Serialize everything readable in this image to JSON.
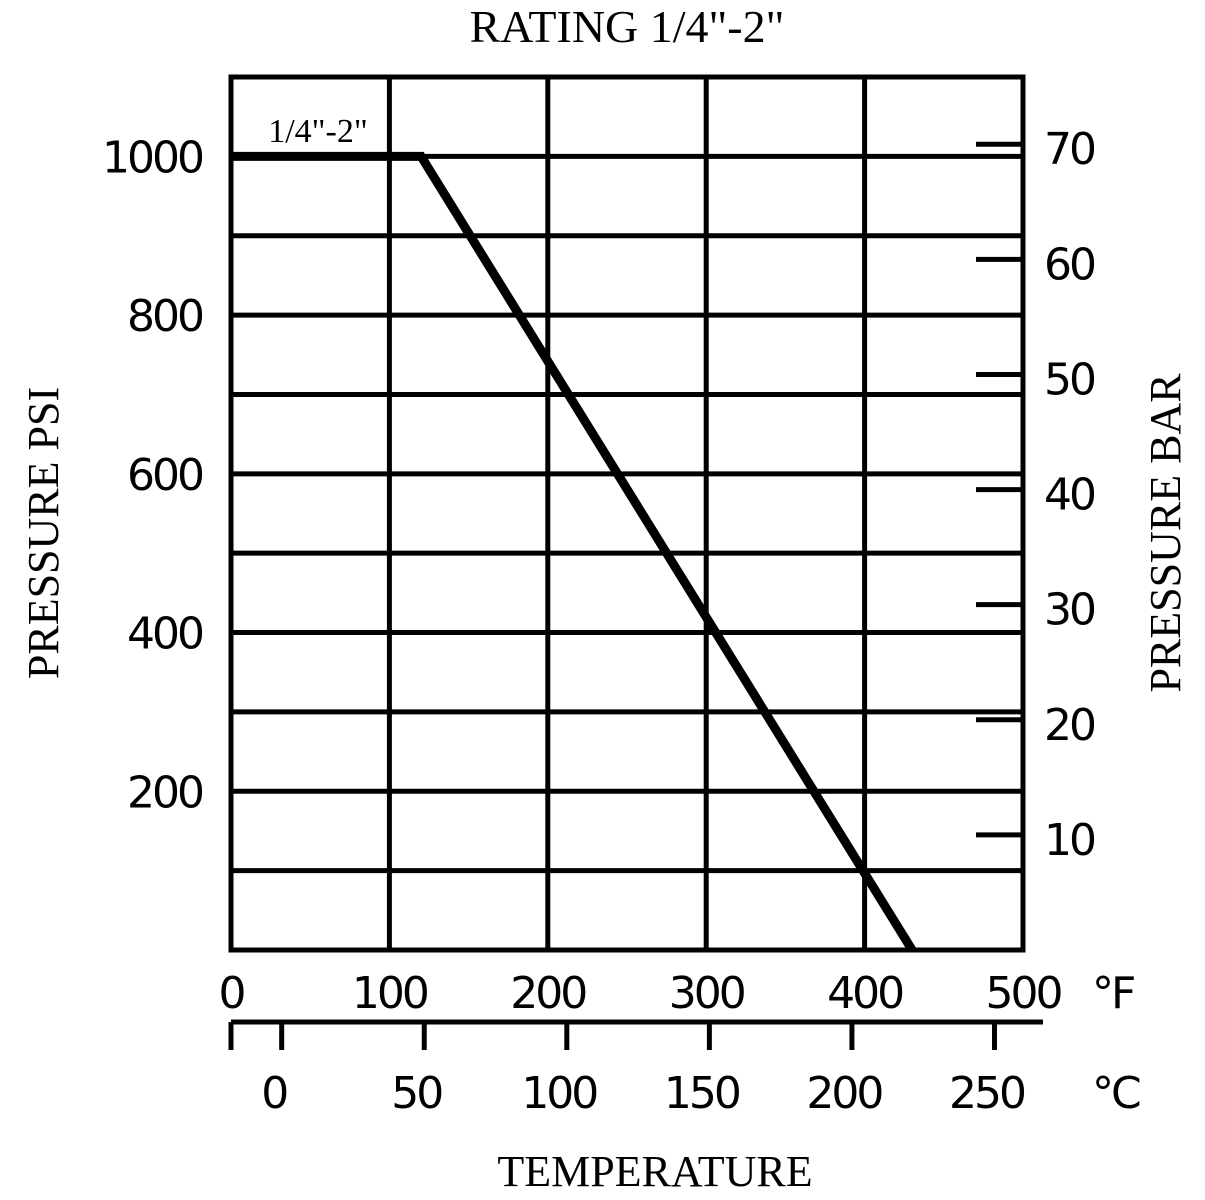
{
  "chart_data": {
    "type": "line",
    "title": "RATING 1/4\"-2\"",
    "xlabel": "TEMPERATURE",
    "ylabel_left": "PRESSURE PSI",
    "ylabel_right": "PRESSURE BAR",
    "x_unit_f": "°F",
    "x_unit_c": "°C",
    "xlim_f": [
      0,
      500
    ],
    "ylim_psi": [
      0,
      1100
    ],
    "grid": true,
    "x_ticks_f": [
      "0",
      "100",
      "200",
      "300",
      "400",
      "500"
    ],
    "x_ticks_c": [
      "0",
      "50",
      "100",
      "150",
      "200",
      "250"
    ],
    "y_ticks_psi": [
      "200",
      "400",
      "600",
      "800",
      "1000"
    ],
    "y_ticks_bar": [
      "10",
      "20",
      "30",
      "40",
      "50",
      "60",
      "70"
    ],
    "series": [
      {
        "name": "1/4\"-2\"",
        "x": [
          0,
          120,
          430
        ],
        "y": [
          1000,
          1000,
          0
        ]
      }
    ]
  }
}
